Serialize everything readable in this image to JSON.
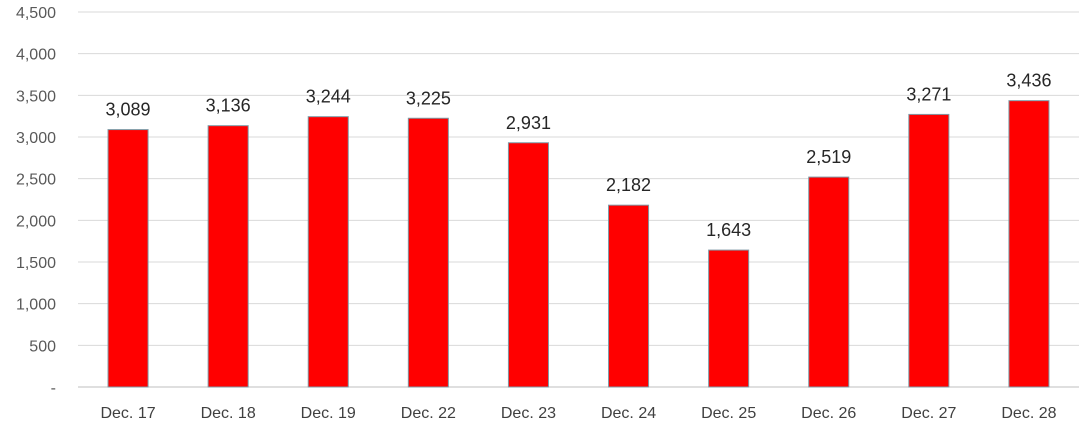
{
  "chart_data": {
    "type": "bar",
    "categories": [
      "Dec. 17",
      "Dec. 18",
      "Dec. 19",
      "Dec. 22",
      "Dec. 23",
      "Dec. 24",
      "Dec. 25",
      "Dec. 26",
      "Dec. 27",
      "Dec. 28"
    ],
    "values": [
      3089,
      3136,
      3244,
      3225,
      2931,
      2182,
      1643,
      2519,
      3271,
      3436
    ],
    "value_labels": [
      "3,089",
      "3,136",
      "3,244",
      "3,225",
      "2,931",
      "2,182",
      "1,643",
      "2,519",
      "3,271",
      "3,436"
    ],
    "title": "",
    "xlabel": "",
    "ylabel": "",
    "ylim": [
      0,
      4500
    ],
    "yticks": [
      0,
      500,
      1000,
      1500,
      2000,
      2500,
      3000,
      3500,
      4000,
      4500
    ],
    "ytick_labels": [
      "-",
      "500",
      "1,000",
      "1,500",
      "2,000",
      "2,500",
      "3,000",
      "3,500",
      "4,000",
      "4,500"
    ],
    "grid": true,
    "legend": "none",
    "colors": {
      "bar_fill": "#ff0000",
      "bar_stroke": "#7f9aa6",
      "grid": "#d9d9d9"
    }
  }
}
